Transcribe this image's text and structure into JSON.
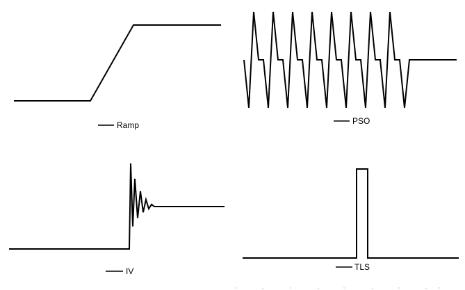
{
  "colors": {
    "background": "#ffffff",
    "stroke": "#000000",
    "dots": "#bbbbbb"
  },
  "panels": [
    {
      "id": "ramp",
      "label": "Ramp",
      "shape": "ramp: flat low, linear rise, flat high"
    },
    {
      "id": "pso",
      "label": "PSO",
      "shape": "8 sawtooth oscillation cycles, then flat"
    },
    {
      "id": "iv",
      "label": "IV",
      "shape": "flat low, step with damped ringing, flat high"
    },
    {
      "id": "tls",
      "label": "TLS",
      "shape": "flat baseline with one narrow rectangular pulse"
    }
  ]
}
